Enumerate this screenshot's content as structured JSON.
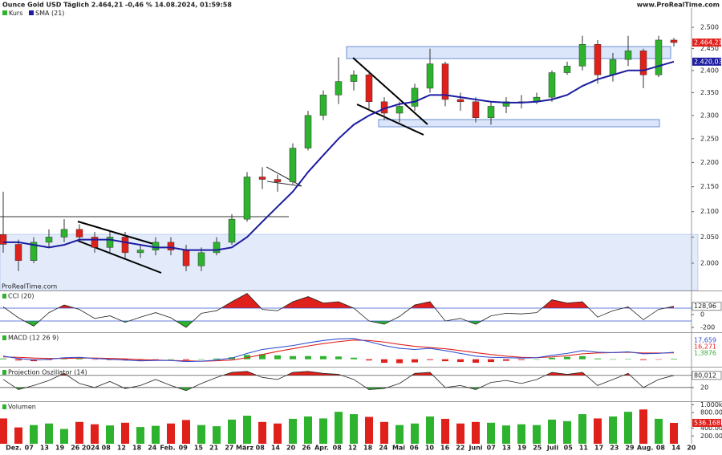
{
  "header": {
    "title": "Ounce Gold USD Täglich 2.464,21 -0,46 % 14.08.2024, 01:59:58",
    "source": "www.ProRealTime.com",
    "watermark": "ProRealTime.com"
  },
  "chart_data": [
    {
      "type": "candlestick",
      "name": "Kurs",
      "up_color": "#2db32d",
      "down_color": "#e0201b",
      "log_scale": true,
      "open": [
        2055,
        2036,
        2005,
        2040,
        2050,
        2065,
        2050,
        2030,
        2050,
        2020,
        2025,
        2040,
        2025,
        1995,
        2020,
        2040,
        2085,
        2170,
        2165,
        2160,
        2230,
        2300,
        2345,
        2375,
        2390,
        2330,
        2305,
        2320,
        2360,
        2415,
        2335,
        2330,
        2295,
        2320,
        2330,
        2330,
        2340,
        2395,
        2410,
        2460,
        2390,
        2425,
        2445,
        2390,
        2470
      ],
      "high": [
        2140,
        2045,
        2050,
        2065,
        2085,
        2075,
        2060,
        2060,
        2060,
        2035,
        2050,
        2050,
        2035,
        2030,
        2050,
        2095,
        2180,
        2190,
        2175,
        2240,
        2310,
        2355,
        2430,
        2400,
        2400,
        2340,
        2330,
        2370,
        2450,
        2420,
        2350,
        2340,
        2330,
        2340,
        2345,
        2350,
        2400,
        2420,
        2480,
        2470,
        2440,
        2480,
        2450,
        2480,
        2475
      ],
      "low": [
        2020,
        1985,
        2000,
        2030,
        2040,
        2040,
        2020,
        2020,
        2010,
        2010,
        2015,
        2015,
        1985,
        1985,
        2015,
        2035,
        2080,
        2145,
        2140,
        2155,
        2225,
        2290,
        2325,
        2355,
        2310,
        2290,
        2285,
        2310,
        2350,
        2320,
        2310,
        2285,
        2280,
        2305,
        2315,
        2325,
        2330,
        2390,
        2400,
        2370,
        2375,
        2410,
        2360,
        2385,
        2455
      ],
      "close": [
        2036,
        2005,
        2040,
        2050,
        2065,
        2050,
        2030,
        2050,
        2020,
        2025,
        2040,
        2025,
        1995,
        2020,
        2040,
        2085,
        2170,
        2165,
        2160,
        2230,
        2300,
        2345,
        2375,
        2390,
        2330,
        2305,
        2320,
        2360,
        2415,
        2335,
        2330,
        2295,
        2320,
        2330,
        2330,
        2340,
        2395,
        2410,
        2460,
        2390,
        2425,
        2445,
        2390,
        2470,
        2464.21
      ],
      "overlay": {
        "name": "SMA (21)",
        "color": "#1c1ca0",
        "values": [
          2040,
          2040,
          2035,
          2030,
          2035,
          2045,
          2045,
          2045,
          2040,
          2035,
          2030,
          2030,
          2025,
          2025,
          2025,
          2030,
          2050,
          2080,
          2110,
          2140,
          2180,
          2215,
          2250,
          2280,
          2300,
          2315,
          2325,
          2330,
          2345,
          2345,
          2340,
          2335,
          2330,
          2328,
          2328,
          2330,
          2335,
          2345,
          2365,
          2380,
          2390,
          2400,
          2400,
          2410,
          2420.03
        ]
      },
      "ylim": [
        1949,
        2546
      ],
      "yticks": [
        {
          "value": 2000,
          "label": "2.000"
        },
        {
          "value": 2050,
          "label": "2.050"
        },
        {
          "value": 2100,
          "label": "2.100"
        },
        {
          "value": 2150,
          "label": "2.150"
        },
        {
          "value": 2200,
          "label": "2.200"
        },
        {
          "value": 2250,
          "label": "2.250"
        },
        {
          "value": 2300,
          "label": "2.300"
        },
        {
          "value": 2350,
          "label": "2.350"
        },
        {
          "value": 2400,
          "label": "2.400"
        },
        {
          "value": 2450,
          "label": "2.450"
        },
        {
          "value": 2500,
          "label": "2.500"
        }
      ],
      "last_labels": [
        {
          "value": 2464.21,
          "label": "2.464,21",
          "color": "#e0201b"
        },
        {
          "value": 2420.03,
          "label": "2.420,03",
          "color": "#1c1ca0"
        }
      ],
      "x_labels": [
        "Dez.",
        "07",
        "13",
        "19",
        "26",
        "2024",
        "08",
        "12",
        "18",
        "24",
        "Feb.",
        "09",
        "15",
        "21",
        "27",
        "März",
        "08",
        "14",
        "20",
        "26",
        "Apr.",
        "08",
        "12",
        "18",
        "24",
        "Mai",
        "06",
        "10",
        "16",
        "22",
        "Juni",
        "07",
        "13",
        "19",
        "25",
        "Juli",
        "05",
        "11",
        "17",
        "23",
        "29",
        "Aug.",
        "08",
        "14",
        "20"
      ]
    },
    {
      "type": "oscillator",
      "title": "CCI (20)",
      "color": "#222222",
      "levels": [
        100,
        -100
      ],
      "level_color": "#3050d0",
      "high_fill": "#e0201b",
      "low_fill": "#2db32d",
      "values": [
        120,
        -50,
        -180,
        30,
        150,
        80,
        -60,
        -20,
        -120,
        -40,
        30,
        -50,
        -200,
        20,
        60,
        200,
        330,
        80,
        60,
        200,
        280,
        180,
        200,
        100,
        -100,
        -150,
        -30,
        150,
        200,
        -100,
        -60,
        -150,
        -20,
        20,
        10,
        30,
        230,
        180,
        200,
        -40,
        60,
        120,
        -80,
        80,
        128.96
      ],
      "ylim": [
        -250,
        350
      ],
      "yticks": [
        0,
        -200
      ],
      "last_label": {
        "value": 128.96,
        "label": "128,96"
      }
    },
    {
      "type": "macd",
      "title": "MACD (12 26 9)",
      "series": [
        {
          "name": "MACD",
          "color": "#3050d0",
          "values": [
            8,
            2,
            -2,
            0,
            4,
            5,
            2,
            0,
            -2,
            -4,
            -3,
            -3,
            -6,
            -5,
            -2,
            3,
            15,
            25,
            30,
            35,
            42,
            48,
            52,
            53,
            45,
            35,
            28,
            25,
            28,
            22,
            15,
            8,
            5,
            4,
            3,
            4,
            10,
            15,
            22,
            18,
            17,
            19,
            14,
            15,
            17.659
          ]
        },
        {
          "name": "Signal",
          "color": "#e0201b",
          "values": [
            6,
            5,
            3,
            2,
            2,
            3,
            3,
            2,
            1,
            -1,
            -2,
            -3,
            -4,
            -5,
            -4,
            -2,
            4,
            12,
            20,
            27,
            34,
            40,
            45,
            49,
            48,
            44,
            38,
            33,
            30,
            27,
            22,
            17,
            12,
            8,
            5,
            4,
            6,
            9,
            14,
            16,
            17,
            18,
            16,
            16,
            16.271
          ]
        },
        {
          "name": "Histogramm",
          "color": "#2db32d",
          "values": [
            2,
            -3,
            -5,
            -2,
            2,
            2,
            -1,
            -2,
            -3,
            -3,
            -1,
            0,
            -2,
            0,
            2,
            5,
            11,
            13,
            10,
            8,
            8,
            8,
            7,
            4,
            -3,
            -9,
            -10,
            -8,
            -2,
            -5,
            -7,
            -9,
            -7,
            -4,
            -2,
            0,
            4,
            6,
            8,
            2,
            0,
            1,
            -2,
            -1,
            1.3876
          ]
        }
      ],
      "ylim": [
        -15,
        65
      ],
      "last_labels": [
        {
          "value": 17.659,
          "label": "17,659"
        },
        {
          "value": 16.271,
          "label": "16,271"
        },
        {
          "value": 1.3876,
          "label": "1,3876"
        }
      ]
    },
    {
      "type": "oscillator",
      "title": "Projection Oszillator (14)",
      "color": "#222222",
      "levels": [
        80,
        20
      ],
      "level_color": "#333333",
      "high_fill": "#e0201b",
      "low_fill": "#2db32d",
      "values": [
        60,
        10,
        30,
        55,
        90,
        40,
        20,
        50,
        15,
        30,
        60,
        30,
        5,
        40,
        70,
        95,
        100,
        70,
        60,
        95,
        100,
        90,
        85,
        60,
        10,
        15,
        40,
        90,
        95,
        20,
        30,
        10,
        45,
        55,
        40,
        60,
        95,
        85,
        95,
        30,
        60,
        90,
        20,
        60,
        80.012
      ],
      "ylim": [
        -40,
        115
      ],
      "yticks": [
        80,
        20
      ],
      "last_label": {
        "value": 80.012,
        "label": "80,012"
      }
    },
    {
      "type": "volume",
      "title": "Volumen",
      "values": [
        650000,
        420000,
        480000,
        520000,
        380000,
        560000,
        500000,
        470000,
        540000,
        430000,
        460000,
        520000,
        610000,
        480000,
        450000,
        620000,
        720000,
        560000,
        520000,
        640000,
        700000,
        650000,
        820000,
        760000,
        690000,
        560000,
        480000,
        520000,
        700000,
        640000,
        520000,
        560000,
        540000,
        470000,
        500000,
        480000,
        620000,
        580000,
        760000,
        650000,
        700000,
        820000,
        880000,
        640000,
        536168
      ],
      "ylim": [
        0,
        1050000
      ],
      "yticks": [
        {
          "value": 1000000,
          "label": "1.000k"
        },
        {
          "value": 800000,
          "label": "800.000"
        },
        {
          "value": 400000,
          "label": "400.000"
        },
        {
          "value": 200000,
          "label": "200.000"
        }
      ],
      "last_label": {
        "value": 536168,
        "label": "536.168"
      }
    }
  ]
}
